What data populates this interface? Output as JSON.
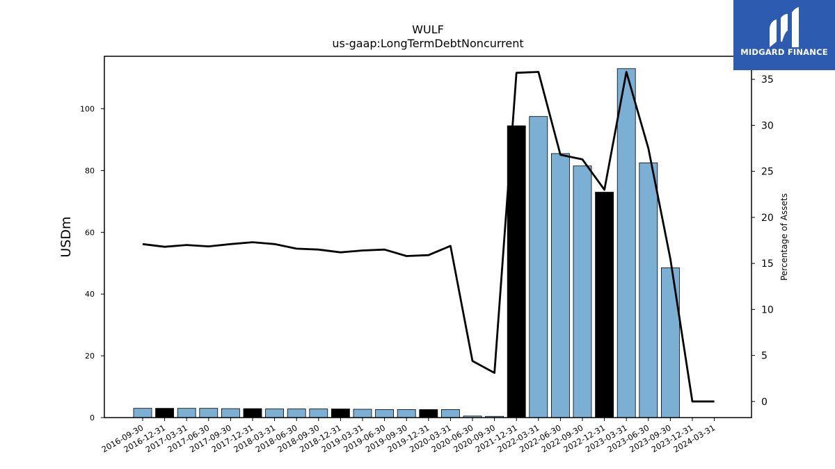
{
  "chart_data": {
    "type": "bar",
    "title": "WULF",
    "subtitle": "us-gaap:LongTermDebtNoncurrent",
    "ylabel": "USDm",
    "y2label": "Percentage of Assets",
    "ylim": [
      0,
      117
    ],
    "y2lim": [
      -1.75,
      37.5
    ],
    "yticks": [
      0,
      20,
      40,
      60,
      80,
      100
    ],
    "y2ticks": [
      0,
      5,
      10,
      15,
      20,
      25,
      30,
      35
    ],
    "categories": [
      "2016-09-30",
      "2016-12-31",
      "2017-03-31",
      "2017-06-30",
      "2017-09-30",
      "2017-12-31",
      "2018-03-31",
      "2018-06-30",
      "2018-09-30",
      "2018-12-31",
      "2019-03-31",
      "2019-06-30",
      "2019-09-30",
      "2019-12-31",
      "2020-03-31",
      "2020-06-30",
      "2020-09-30",
      "2021-12-31",
      "2022-03-31",
      "2022-06-30",
      "2022-09-30",
      "2022-12-31",
      "2023-03-31",
      "2023-06-30",
      "2023-09-30",
      "2023-12-31",
      "2024-03-31"
    ],
    "series": [
      {
        "kind": "bar",
        "values": [
          3.0,
          3.0,
          3.0,
          3.0,
          2.9,
          2.9,
          2.8,
          2.8,
          2.8,
          2.8,
          2.7,
          2.6,
          2.6,
          2.6,
          2.6,
          0.5,
          0.4,
          94.5,
          97.5,
          85.5,
          81.5,
          73.0,
          113.0,
          82.5,
          48.5,
          0,
          0
        ],
        "colors": [
          "#7bafd4",
          "#000000",
          "#7bafd4",
          "#7bafd4",
          "#7bafd4",
          "#000000",
          "#7bafd4",
          "#7bafd4",
          "#7bafd4",
          "#000000",
          "#7bafd4",
          "#7bafd4",
          "#7bafd4",
          "#000000",
          "#7bafd4",
          "#7bafd4",
          "#7bafd4",
          "#000000",
          "#7bafd4",
          "#7bafd4",
          "#7bafd4",
          "#000000",
          "#7bafd4",
          "#7bafd4",
          "#7bafd4",
          "#7bafd4",
          "#7bafd4"
        ]
      },
      {
        "kind": "line",
        "axis": "right",
        "color": "#000000",
        "values": [
          17.1,
          16.8,
          17.0,
          16.85,
          17.1,
          17.3,
          17.1,
          16.6,
          16.5,
          16.2,
          16.4,
          16.5,
          15.8,
          15.9,
          16.9,
          4.4,
          3.1,
          35.7,
          35.8,
          26.8,
          26.3,
          23.0,
          35.8,
          27.5,
          15.5,
          0,
          0
        ]
      }
    ]
  },
  "logo": {
    "text": "MIDGARD FINANCE",
    "color": "#2c5bb0"
  }
}
